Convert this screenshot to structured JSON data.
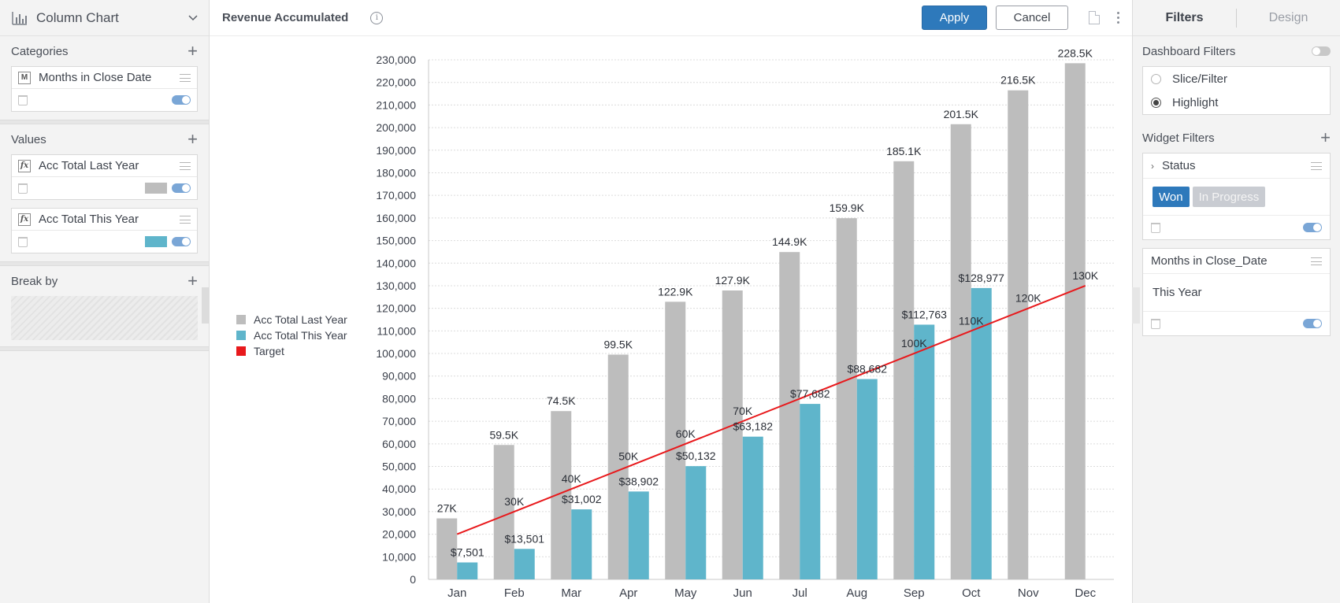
{
  "left_panel": {
    "chart_type": "Column Chart",
    "categories_label": "Categories",
    "categories": [
      {
        "badge": "M",
        "label": "Months in Close Date"
      }
    ],
    "values_label": "Values",
    "values": [
      {
        "badge": "fx",
        "label": "Acc Total Last Year",
        "color": "#bdbdbd"
      },
      {
        "badge": "fx",
        "label": "Acc Total This Year",
        "color": "#5fb5cb"
      }
    ],
    "break_by_label": "Break by"
  },
  "toolbar": {
    "title": "Revenue Accumulated",
    "apply": "Apply",
    "cancel": "Cancel"
  },
  "right_panel": {
    "tabs": [
      "Filters",
      "Design"
    ],
    "dashboard_filters_label": "Dashboard Filters",
    "mode_options": [
      "Slice/Filter",
      "Highlight"
    ],
    "selected_mode": "Highlight",
    "widget_filters_label": "Widget Filters",
    "status_filter": {
      "label": "Status",
      "chips": [
        {
          "label": "Won",
          "active": true
        },
        {
          "label": "In Progress",
          "active": false
        }
      ]
    },
    "date_filter": {
      "label": "Months in Close_Date",
      "value": "This Year"
    }
  },
  "chart_data": {
    "type": "bar",
    "categories": [
      "Jan",
      "Feb",
      "Mar",
      "Apr",
      "May",
      "Jun",
      "Jul",
      "Aug",
      "Sep",
      "Oct",
      "Nov",
      "Dec"
    ],
    "series": [
      {
        "name": "Acc Total Last Year",
        "type": "bar",
        "color": "#bdbdbd",
        "values": [
          27000,
          59500,
          74500,
          99500,
          122900,
          127900,
          144900,
          159900,
          185100,
          201500,
          216500,
          228500
        ],
        "labels": [
          "27K",
          "59.5K",
          "74.5K",
          "99.5K",
          "122.9K",
          "127.9K",
          "144.9K",
          "159.9K",
          "185.1K",
          "201.5K",
          "216.5K",
          "228.5K"
        ]
      },
      {
        "name": "Acc Total This Year",
        "type": "bar",
        "color": "#5fb5cb",
        "values": [
          7501,
          13501,
          31002,
          38902,
          50132,
          63182,
          77682,
          88682,
          112763,
          128977,
          null,
          null
        ],
        "labels": [
          "$7,501",
          "$13,501",
          "$31,002",
          "$38,902",
          "$50,132",
          "$63,182",
          "$77,682",
          "$88,682",
          "$112,763",
          "$128,977",
          "",
          ""
        ]
      },
      {
        "name": "Target",
        "type": "line",
        "color": "#e8191c",
        "values": [
          20000,
          30000,
          40000,
          50000,
          60000,
          70000,
          80000,
          90000,
          100000,
          110000,
          120000,
          130000
        ],
        "labels": [
          "",
          "30K",
          "40K",
          "50K",
          "60K",
          "70K",
          "",
          "",
          "100K",
          "110K",
          "120K",
          "130K"
        ]
      }
    ],
    "ylim": [
      0,
      230000
    ],
    "y_ticks": [
      "0",
      "10,000",
      "20,000",
      "30,000",
      "40,000",
      "50,000",
      "60,000",
      "70,000",
      "80,000",
      "90,000",
      "100,000",
      "110,000",
      "120,000",
      "130,000",
      "140,000",
      "150,000",
      "160,000",
      "170,000",
      "180,000",
      "190,000",
      "200,000",
      "210,000",
      "220,000",
      "230,000"
    ],
    "legend_position": "left",
    "grid": true
  }
}
